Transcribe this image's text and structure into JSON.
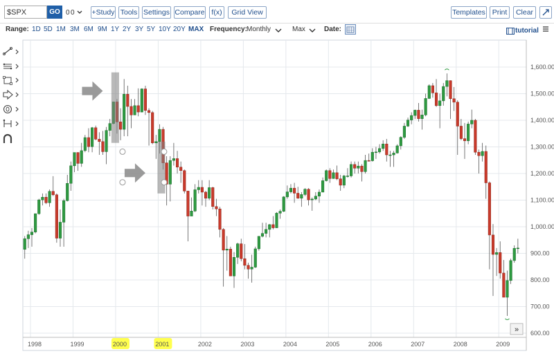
{
  "toolbar": {
    "symbol": "$SPX",
    "go": "GO",
    "buttons": [
      "+Study",
      "Tools",
      "Settings",
      "Compare",
      "f(x)",
      "Grid View"
    ],
    "right_buttons": [
      "Templates",
      "Print",
      "Clear"
    ]
  },
  "rangebar": {
    "range_label": "Range:",
    "ranges": [
      "1D",
      "5D",
      "1M",
      "3M",
      "6M",
      "9M",
      "1Y",
      "2Y",
      "3Y",
      "5Y",
      "10Y",
      "20Y",
      "MAX"
    ],
    "active_range": "MAX",
    "frequency_label": "Frequency:",
    "frequency": "Monthly",
    "period": "Max",
    "date_label": "Date:",
    "tutorial": "tutorial"
  },
  "icons": [
    "trendline-icon",
    "fibonacci-icon",
    "rectangle-icon",
    "arrow-shape-icon",
    "ellipse-icon",
    "measure-icon",
    "magnet-icon"
  ],
  "colors": {
    "up": "#2e9a41",
    "down": "#c93a2b",
    "accent": "#1f5fa8",
    "highlight": "#ffff4d"
  },
  "chart_data": {
    "type": "candlestick",
    "frequency": "monthly",
    "x_tick_labels": [
      "1998",
      "1999",
      "2000",
      "2001",
      "2002",
      "2003",
      "2004",
      "2005",
      "2006",
      "2007",
      "2008",
      "2009"
    ],
    "highlighted_x_labels": [
      "2000",
      "2001"
    ],
    "y_tick_labels": [
      "600.00",
      "700.00",
      "800.00",
      "900.00",
      "1,000.00",
      "1,100.00",
      "1,200.00",
      "1,300.00",
      "1,400.00",
      "1,500.00",
      "1,600.00"
    ],
    "ylim": [
      590,
      1640
    ],
    "grid": true,
    "scroll_button": "»",
    "annotations": [
      {
        "type": "arrow",
        "date": "1999-09",
        "value": 1510
      },
      {
        "type": "rectangle",
        "from": "1999-12",
        "to": "2000-01",
        "low": 1315,
        "high": 1580
      },
      {
        "type": "arrow",
        "date": "2000-09",
        "value": 1202
      },
      {
        "type": "rectangle",
        "from": "2001-01",
        "to": "2001-02",
        "low": 1125,
        "high": 1320
      }
    ],
    "ohlc": [
      [
        "1997-11",
        915,
        965,
        880,
        955
      ],
      [
        "1997-12",
        955,
        985,
        920,
        970
      ],
      [
        "1998-01",
        970,
        995,
        925,
        980
      ],
      [
        "1998-02",
        980,
        1050,
        975,
        1049
      ],
      [
        "1998-03",
        1049,
        1105,
        1045,
        1101
      ],
      [
        "1998-04",
        1101,
        1125,
        1080,
        1111
      ],
      [
        "1998-05",
        1111,
        1125,
        1085,
        1090
      ],
      [
        "1998-06",
        1090,
        1140,
        1075,
        1133
      ],
      [
        "1998-07",
        1133,
        1190,
        1115,
        1120
      ],
      [
        "1998-08",
        1120,
        1125,
        940,
        957
      ],
      [
        "1998-09",
        957,
        1065,
        925,
        1017
      ],
      [
        "1998-10",
        1017,
        1105,
        925,
        1098
      ],
      [
        "1998-11",
        1098,
        1195,
        1095,
        1163
      ],
      [
        "1998-12",
        1163,
        1245,
        1135,
        1229
      ],
      [
        "1999-01",
        1229,
        1275,
        1205,
        1279
      ],
      [
        "1999-02",
        1279,
        1280,
        1210,
        1238
      ],
      [
        "1999-03",
        1238,
        1315,
        1225,
        1286
      ],
      [
        "1999-04",
        1286,
        1345,
        1280,
        1335
      ],
      [
        "1999-05",
        1335,
        1370,
        1280,
        1301
      ],
      [
        "1999-06",
        1301,
        1375,
        1280,
        1372
      ],
      [
        "1999-07",
        1372,
        1380,
        1325,
        1329
      ],
      [
        "1999-08",
        1329,
        1355,
        1270,
        1320
      ],
      [
        "1999-09",
        1320,
        1360,
        1270,
        1282
      ],
      [
        "1999-10",
        1282,
        1375,
        1235,
        1362
      ],
      [
        "1999-11",
        1362,
        1405,
        1340,
        1388
      ],
      [
        "1999-12",
        1388,
        1470,
        1385,
        1469
      ],
      [
        "2000-01",
        1469,
        1480,
        1350,
        1394
      ],
      [
        "2000-02",
        1394,
        1445,
        1325,
        1366
      ],
      [
        "2000-03",
        1366,
        1555,
        1340,
        1498
      ],
      [
        "2000-04",
        1498,
        1530,
        1340,
        1452
      ],
      [
        "2000-05",
        1452,
        1480,
        1370,
        1420
      ],
      [
        "2000-06",
        1420,
        1480,
        1420,
        1455
      ],
      [
        "2000-07",
        1455,
        1520,
        1415,
        1431
      ],
      [
        "2000-08",
        1431,
        1520,
        1430,
        1518
      ],
      [
        "2000-09",
        1518,
        1530,
        1420,
        1437
      ],
      [
        "2000-10",
        1437,
        1445,
        1305,
        1429
      ],
      [
        "2000-11",
        1429,
        1435,
        1310,
        1315
      ],
      [
        "2000-12",
        1315,
        1345,
        1255,
        1320
      ],
      [
        "2001-01",
        1320,
        1385,
        1275,
        1366
      ],
      [
        "2001-02",
        1366,
        1375,
        1215,
        1240
      ],
      [
        "2001-03",
        1240,
        1265,
        1080,
        1160
      ],
      [
        "2001-04",
        1160,
        1265,
        1095,
        1249
      ],
      [
        "2001-05",
        1249,
        1315,
        1230,
        1256
      ],
      [
        "2001-06",
        1256,
        1285,
        1200,
        1224
      ],
      [
        "2001-07",
        1224,
        1245,
        1165,
        1211
      ],
      [
        "2001-08",
        1211,
        1215,
        1125,
        1134
      ],
      [
        "2001-09",
        1134,
        1135,
        945,
        1040
      ],
      [
        "2001-10",
        1040,
        1110,
        1040,
        1059
      ],
      [
        "2001-11",
        1059,
        1160,
        1055,
        1139
      ],
      [
        "2001-12",
        1139,
        1175,
        1125,
        1148
      ],
      [
        "2002-01",
        1148,
        1175,
        1080,
        1130
      ],
      [
        "2002-02",
        1130,
        1135,
        1075,
        1107
      ],
      [
        "2002-03",
        1107,
        1175,
        1100,
        1147
      ],
      [
        "2002-04",
        1147,
        1150,
        1065,
        1076
      ],
      [
        "2002-05",
        1076,
        1105,
        1040,
        1067
      ],
      [
        "2002-06",
        1067,
        1075,
        960,
        990
      ],
      [
        "2002-07",
        990,
        995,
        775,
        912
      ],
      [
        "2002-08",
        912,
        965,
        835,
        916
      ],
      [
        "2002-09",
        916,
        925,
        815,
        815
      ],
      [
        "2002-10",
        815,
        905,
        770,
        885
      ],
      [
        "2002-11",
        885,
        940,
        860,
        936
      ],
      [
        "2002-12",
        936,
        955,
        870,
        880
      ],
      [
        "2003-01",
        880,
        935,
        840,
        855
      ],
      [
        "2003-02",
        855,
        865,
        805,
        841
      ],
      [
        "2003-03",
        841,
        895,
        790,
        848
      ],
      [
        "2003-04",
        848,
        925,
        845,
        917
      ],
      [
        "2003-05",
        917,
        965,
        910,
        964
      ],
      [
        "2003-06",
        964,
        1015,
        960,
        975
      ],
      [
        "2003-07",
        975,
        1015,
        960,
        990
      ],
      [
        "2003-08",
        990,
        1010,
        960,
        1008
      ],
      [
        "2003-09",
        1008,
        1040,
        990,
        996
      ],
      [
        "2003-10",
        996,
        1055,
        995,
        1051
      ],
      [
        "2003-11",
        1051,
        1065,
        1030,
        1058
      ],
      [
        "2003-12",
        1058,
        1115,
        1055,
        1112
      ],
      [
        "2004-01",
        1112,
        1155,
        1105,
        1131
      ],
      [
        "2004-02",
        1131,
        1160,
        1125,
        1145
      ],
      [
        "2004-03",
        1145,
        1165,
        1090,
        1126
      ],
      [
        "2004-04",
        1126,
        1150,
        1105,
        1107
      ],
      [
        "2004-05",
        1107,
        1130,
        1075,
        1121
      ],
      [
        "2004-06",
        1121,
        1145,
        1115,
        1141
      ],
      [
        "2004-07",
        1141,
        1145,
        1080,
        1101
      ],
      [
        "2004-08",
        1101,
        1110,
        1060,
        1104
      ],
      [
        "2004-09",
        1104,
        1130,
        1100,
        1115
      ],
      [
        "2004-10",
        1115,
        1140,
        1090,
        1130
      ],
      [
        "2004-11",
        1130,
        1185,
        1130,
        1173
      ],
      [
        "2004-12",
        1173,
        1215,
        1170,
        1211
      ],
      [
        "2005-01",
        1211,
        1220,
        1165,
        1181
      ],
      [
        "2005-02",
        1181,
        1215,
        1180,
        1203
      ],
      [
        "2005-03",
        1203,
        1230,
        1175,
        1180
      ],
      [
        "2005-04",
        1180,
        1195,
        1135,
        1156
      ],
      [
        "2005-05",
        1156,
        1195,
        1145,
        1191
      ],
      [
        "2005-06",
        1191,
        1220,
        1185,
        1191
      ],
      [
        "2005-07",
        1191,
        1245,
        1185,
        1234
      ],
      [
        "2005-08",
        1234,
        1245,
        1200,
        1220
      ],
      [
        "2005-09",
        1220,
        1245,
        1200,
        1228
      ],
      [
        "2005-10",
        1228,
        1235,
        1170,
        1207
      ],
      [
        "2005-11",
        1207,
        1270,
        1200,
        1249
      ],
      [
        "2005-12",
        1249,
        1275,
        1245,
        1248
      ],
      [
        "2006-01",
        1248,
        1295,
        1245,
        1280
      ],
      [
        "2006-02",
        1280,
        1300,
        1255,
        1281
      ],
      [
        "2006-03",
        1281,
        1310,
        1275,
        1294
      ],
      [
        "2006-04",
        1294,
        1325,
        1285,
        1311
      ],
      [
        "2006-05",
        1311,
        1330,
        1245,
        1270
      ],
      [
        "2006-06",
        1270,
        1285,
        1225,
        1270
      ],
      [
        "2006-07",
        1270,
        1285,
        1225,
        1277
      ],
      [
        "2006-08",
        1277,
        1310,
        1275,
        1304
      ],
      [
        "2006-09",
        1304,
        1340,
        1290,
        1336
      ],
      [
        "2006-10",
        1336,
        1390,
        1330,
        1378
      ],
      [
        "2006-11",
        1378,
        1410,
        1375,
        1401
      ],
      [
        "2006-12",
        1401,
        1430,
        1385,
        1418
      ],
      [
        "2007-01",
        1418,
        1440,
        1405,
        1438
      ],
      [
        "2007-02",
        1438,
        1465,
        1395,
        1406
      ],
      [
        "2007-03",
        1406,
        1440,
        1365,
        1420
      ],
      [
        "2007-04",
        1420,
        1500,
        1415,
        1482
      ],
      [
        "2007-05",
        1482,
        1535,
        1480,
        1530
      ],
      [
        "2007-06",
        1530,
        1540,
        1485,
        1503
      ],
      [
        "2007-07",
        1503,
        1555,
        1450,
        1455
      ],
      [
        "2007-08",
        1455,
        1500,
        1370,
        1473
      ],
      [
        "2007-09",
        1473,
        1540,
        1455,
        1527
      ],
      [
        "2007-10",
        1527,
        1576,
        1490,
        1549
      ],
      [
        "2007-11",
        1549,
        1550,
        1405,
        1481
      ],
      [
        "2007-12",
        1481,
        1525,
        1435,
        1468
      ],
      [
        "2008-01",
        1468,
        1475,
        1270,
        1378
      ],
      [
        "2008-02",
        1378,
        1405,
        1325,
        1331
      ],
      [
        "2008-03",
        1331,
        1390,
        1255,
        1323
      ],
      [
        "2008-04",
        1323,
        1395,
        1310,
        1386
      ],
      [
        "2008-05",
        1386,
        1440,
        1370,
        1400
      ],
      [
        "2008-06",
        1400,
        1405,
        1270,
        1280
      ],
      [
        "2008-07",
        1280,
        1290,
        1200,
        1267
      ],
      [
        "2008-08",
        1267,
        1315,
        1245,
        1283
      ],
      [
        "2008-09",
        1283,
        1305,
        1105,
        1165
      ],
      [
        "2008-10",
        1165,
        1170,
        840,
        969
      ],
      [
        "2008-11",
        969,
        1010,
        740,
        896
      ],
      [
        "2008-12",
        896,
        920,
        815,
        903
      ],
      [
        "2009-01",
        903,
        945,
        805,
        826
      ],
      [
        "2009-02",
        826,
        875,
        735,
        735
      ],
      [
        "2009-03",
        735,
        835,
        665,
        798
      ],
      [
        "2009-04",
        798,
        880,
        785,
        873
      ],
      [
        "2009-05",
        873,
        930,
        865,
        919
      ],
      [
        "2009-06",
        919,
        955,
        900,
        920
      ]
    ]
  }
}
